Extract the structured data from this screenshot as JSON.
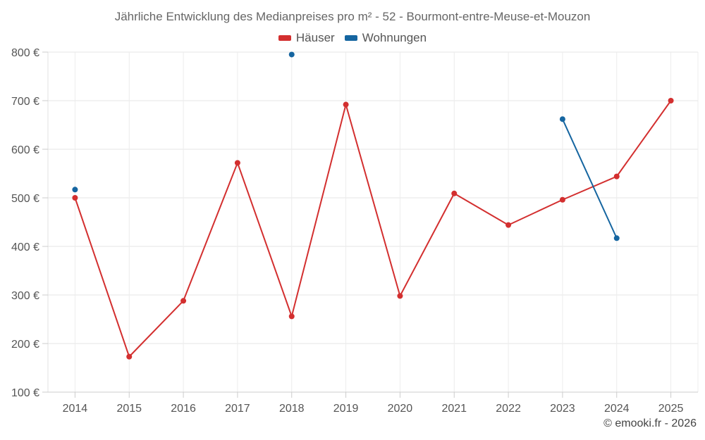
{
  "chart_data": {
    "type": "line",
    "title": "Jährliche Entwicklung des Medianpreises pro m² - 52 - Bourmont-entre-Meuse-et-Mouzon",
    "categories": [
      "2014",
      "2015",
      "2016",
      "2017",
      "2018",
      "2019",
      "2020",
      "2021",
      "2022",
      "2023",
      "2024",
      "2025"
    ],
    "series": [
      {
        "name": "Häuser",
        "color": "#d32f2f",
        "values": [
          500,
          173,
          288,
          572,
          256,
          692,
          298,
          509,
          444,
          496,
          544,
          700
        ]
      },
      {
        "name": "Wohnungen",
        "color": "#1565a0",
        "values": [
          517,
          null,
          null,
          null,
          795,
          null,
          null,
          null,
          null,
          662,
          417,
          null
        ]
      }
    ],
    "y_ticks": [
      "100 €",
      "200 €",
      "300 €",
      "400 €",
      "500 €",
      "600 €",
      "700 €",
      "800 €"
    ],
    "ylim": [
      100,
      800
    ],
    "xlabel": "",
    "ylabel": "",
    "grid": true,
    "legend": "top-center"
  },
  "credit": "© emooki.fr - 2026"
}
